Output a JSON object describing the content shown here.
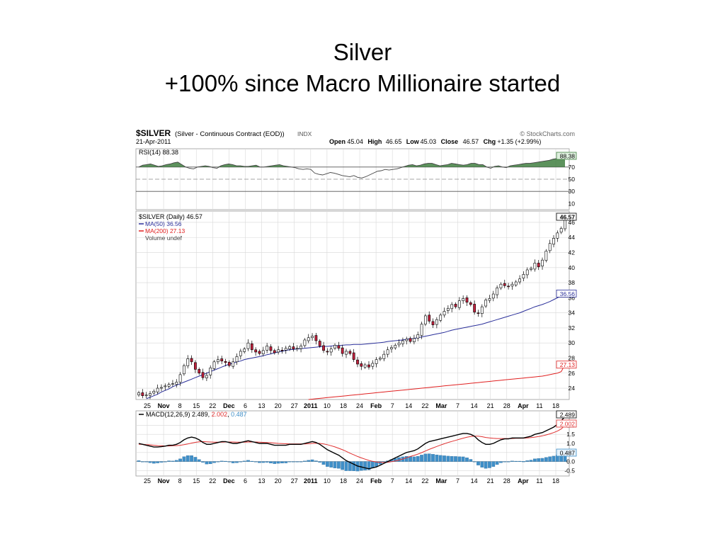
{
  "slide": {
    "title_line1": "Silver",
    "title_line2": "+100% since Macro Millionaire started"
  },
  "colors": {
    "up_candle": "#ffffff",
    "down_candle": "#c0203c",
    "rsi_fill": "#3f7f3f",
    "ma50": "#2a2f9a",
    "ma200": "#e02020",
    "macd_signal": "#e03030",
    "histogram": "#3f8fc8",
    "grid": "#d8d8d8"
  },
  "chart_data": {
    "type": "candlestick",
    "header": {
      "symbol": "$SILVER",
      "description": "(Silver - Continuous Contract (EOD))",
      "exchange": "INDX",
      "date": "21-Apr-2011",
      "brand": "© StockCharts.com",
      "ohlc_text": [
        {
          "label": "Open",
          "value": "45.04"
        },
        {
          "label": "High",
          "value": "46.65"
        },
        {
          "label": "Low",
          "value": "45.03"
        },
        {
          "label": "Close",
          "value": "46.57"
        },
        {
          "label": "Chg",
          "value": "+1.35 (+2.99%)"
        }
      ]
    },
    "x_ticks": [
      "25",
      "Nov",
      "8",
      "15",
      "22",
      "Dec",
      "6",
      "13",
      "20",
      "27",
      "2011",
      "10",
      "18",
      "24",
      "Feb",
      "7",
      "14",
      "22",
      "Mar",
      "7",
      "14",
      "21",
      "28",
      "Apr",
      "11",
      "18"
    ],
    "x_ticks_bold": [
      "Nov",
      "Dec",
      "2011",
      "Feb",
      "Mar",
      "Apr"
    ],
    "rsi": {
      "legend": "RSI(14) 88.38",
      "last_label": "88.38",
      "ylim": [
        0,
        100
      ],
      "y_ticks": [
        10,
        30,
        50,
        70
      ],
      "levels": [
        30,
        50,
        70
      ],
      "values": [
        70,
        73,
        74,
        75,
        73,
        71,
        72,
        74,
        75,
        77,
        78,
        74,
        70,
        68,
        67,
        70,
        71,
        72,
        71,
        69,
        68,
        72,
        74,
        75,
        74,
        72,
        72,
        71,
        71,
        72,
        73,
        70,
        70,
        71,
        72,
        73,
        74,
        72,
        71,
        70,
        69,
        67,
        66,
        67,
        66,
        60,
        58,
        57,
        59,
        61,
        60,
        58,
        56,
        55,
        54,
        56,
        53,
        52,
        54,
        57,
        60,
        63,
        64,
        66,
        65,
        66,
        67,
        69,
        71,
        73,
        74,
        72,
        73,
        75,
        76,
        76,
        74,
        72,
        73,
        74,
        76,
        75,
        74,
        73,
        74,
        76,
        76,
        74,
        74,
        70,
        68,
        71,
        72,
        70,
        69,
        72,
        73,
        74,
        75,
        76,
        76,
        77,
        78,
        79,
        80,
        81,
        83,
        84,
        86,
        88.38
      ]
    },
    "price": {
      "legend": [
        "$SILVER (Daily) 46.57",
        "MA(50) 36.56",
        "MA(200) 27.13",
        "Volume undef"
      ],
      "last_close_label": "46.57",
      "ma50_label": "36.56",
      "ma200_label": "27.13",
      "ylim": [
        22.5,
        47.5
      ],
      "y_ticks": [
        24,
        26,
        28,
        30,
        32,
        34,
        36,
        38,
        40,
        42,
        44,
        46
      ],
      "closes": [
        23.4,
        23.0,
        23.1,
        23.3,
        23.6,
        24.0,
        24.1,
        24.3,
        24.5,
        24.6,
        24.8,
        25.8,
        27.0,
        27.9,
        27.5,
        26.5,
        26.0,
        25.4,
        25.7,
        26.7,
        27.5,
        27.8,
        27.6,
        27.4,
        27.0,
        27.5,
        28.2,
        28.9,
        29.2,
        30.0,
        29.1,
        28.8,
        28.6,
        29.0,
        29.6,
        29.0,
        28.7,
        29.1,
        29.0,
        29.3,
        29.5,
        29.2,
        29.3,
        29.6,
        30.4,
        30.7,
        30.9,
        30.3,
        29.6,
        29.0,
        28.8,
        29.2,
        29.7,
        29.3,
        28.6,
        28.9,
        28.6,
        27.8,
        27.2,
        26.9,
        27.1,
        26.8,
        27.3,
        27.8,
        28.0,
        28.5,
        29.1,
        29.4,
        29.7,
        30.0,
        30.3,
        30.5,
        30.2,
        30.6,
        31.1,
        32.5,
        33.6,
        32.9,
        32.4,
        33.1,
        33.7,
        34.2,
        34.6,
        35.1,
        34.8,
        35.6,
        35.9,
        35.4,
        35.1,
        34.1,
        33.9,
        34.8,
        35.7,
        35.9,
        36.5,
        37.3,
        37.8,
        37.6,
        37.5,
        37.8,
        38.1,
        38.5,
        39.1,
        39.7,
        39.9,
        40.6,
        40.1,
        41.0,
        42.2,
        43.2,
        43.9,
        44.6,
        45.2,
        46.57
      ],
      "ma50": [
        22.2,
        22.4,
        22.6,
        22.8,
        23.0,
        23.2,
        23.5,
        23.7,
        23.9,
        24.2,
        24.4,
        24.6,
        24.8,
        25.0,
        25.2,
        25.4,
        25.6,
        25.8,
        26.0,
        26.2,
        26.4,
        26.6,
        26.8,
        27.0,
        27.2,
        27.3,
        27.5,
        27.6,
        27.8,
        27.9,
        28.0,
        28.1,
        28.2,
        28.3,
        28.45,
        28.55,
        28.7,
        28.8,
        28.9,
        29.0,
        29.1,
        29.15,
        29.2,
        29.25,
        29.3,
        29.35,
        29.4,
        29.45,
        29.5,
        29.55,
        29.55,
        29.6,
        29.65,
        29.65,
        29.7,
        29.75,
        29.75,
        29.8,
        29.8,
        29.8,
        29.85,
        29.9,
        29.95,
        30.0,
        30.05,
        30.1,
        30.2,
        30.25,
        30.3,
        30.35,
        30.4,
        30.5,
        30.55,
        30.6,
        30.7,
        30.8,
        30.9,
        31.0,
        31.1,
        31.2,
        31.3,
        31.4,
        31.55,
        31.7,
        31.8,
        31.9,
        32.0,
        32.1,
        32.2,
        32.3,
        32.4,
        32.5,
        32.65,
        32.8,
        32.95,
        33.1,
        33.25,
        33.4,
        33.55,
        33.7,
        33.85,
        34.0,
        34.2,
        34.4,
        34.6,
        34.8,
        34.95,
        35.1,
        35.3,
        35.5,
        35.75,
        36.0,
        36.3,
        36.56
      ],
      "ma200": [
        20.2,
        20.3,
        20.35,
        20.4,
        20.45,
        20.5,
        20.55,
        20.6,
        20.65,
        20.7,
        20.75,
        20.8,
        20.85,
        20.9,
        20.95,
        21.0,
        21.05,
        21.1,
        21.15,
        21.2,
        21.25,
        21.3,
        21.35,
        21.4,
        21.45,
        21.5,
        21.55,
        21.6,
        21.65,
        21.7,
        21.75,
        21.8,
        21.85,
        21.9,
        21.95,
        22.0,
        22.05,
        22.1,
        22.15,
        22.2,
        22.25,
        22.3,
        22.35,
        22.4,
        22.45,
        22.5,
        22.55,
        22.6,
        22.65,
        22.7,
        22.75,
        22.8,
        22.85,
        22.9,
        22.95,
        23.0,
        23.05,
        23.1,
        23.15,
        23.2,
        23.25,
        23.3,
        23.35,
        23.4,
        23.45,
        23.5,
        23.55,
        23.6,
        23.65,
        23.7,
        23.75,
        23.8,
        23.85,
        23.9,
        23.95,
        24.0,
        24.05,
        24.1,
        24.15,
        24.2,
        24.25,
        24.3,
        24.35,
        24.4,
        24.45,
        24.5,
        24.55,
        24.6,
        24.65,
        24.7,
        24.75,
        24.8,
        24.85,
        24.9,
        24.95,
        25.0,
        25.05,
        25.1,
        25.15,
        25.2,
        25.25,
        25.3,
        25.35,
        25.4,
        25.45,
        25.5,
        25.55,
        25.6,
        25.7,
        25.8,
        25.9,
        26.0,
        26.2,
        27.13
      ]
    },
    "macd": {
      "legend": {
        "name": "MACD(12,26,9)",
        "macd": "2.489",
        "signal": "2.002",
        "hist": "0.487"
      },
      "labels": {
        "macd": "2.489",
        "signal": "2.002",
        "hist": "0.487"
      },
      "ylim": [
        -0.8,
        2.8
      ],
      "y_ticks": [
        2.0,
        1.5,
        1.0,
        0.5,
        0.0,
        -0.5
      ],
      "macd": [
        1.0,
        0.95,
        0.9,
        0.85,
        0.8,
        0.8,
        0.82,
        0.85,
        0.9,
        0.9,
        0.95,
        1.05,
        1.2,
        1.3,
        1.35,
        1.3,
        1.2,
        1.05,
        0.95,
        0.95,
        1.0,
        1.05,
        1.1,
        1.1,
        1.05,
        1.0,
        1.0,
        1.05,
        1.1,
        1.15,
        1.1,
        1.05,
        1.0,
        1.0,
        1.0,
        0.95,
        0.9,
        0.9,
        0.9,
        0.9,
        0.95,
        0.95,
        0.95,
        0.95,
        1.0,
        1.05,
        1.1,
        1.05,
        0.95,
        0.8,
        0.65,
        0.55,
        0.45,
        0.35,
        0.2,
        0.05,
        -0.05,
        -0.15,
        -0.25,
        -0.3,
        -0.35,
        -0.4,
        -0.35,
        -0.3,
        -0.2,
        -0.1,
        0.0,
        0.1,
        0.2,
        0.3,
        0.4,
        0.5,
        0.55,
        0.6,
        0.7,
        0.85,
        1.0,
        1.1,
        1.15,
        1.2,
        1.25,
        1.3,
        1.35,
        1.4,
        1.45,
        1.5,
        1.55,
        1.55,
        1.5,
        1.4,
        1.2,
        1.05,
        0.95,
        0.95,
        1.0,
        1.1,
        1.2,
        1.25,
        1.25,
        1.3,
        1.3,
        1.3,
        1.3,
        1.35,
        1.4,
        1.5,
        1.55,
        1.6,
        1.7,
        1.8,
        1.9,
        2.05,
        2.25,
        2.489
      ],
      "signal": [
        0.95,
        0.95,
        0.93,
        0.92,
        0.9,
        0.88,
        0.87,
        0.86,
        0.86,
        0.87,
        0.88,
        0.9,
        0.93,
        0.97,
        1.02,
        1.06,
        1.09,
        1.1,
        1.09,
        1.08,
        1.07,
        1.07,
        1.07,
        1.08,
        1.08,
        1.08,
        1.07,
        1.07,
        1.07,
        1.08,
        1.08,
        1.08,
        1.07,
        1.06,
        1.05,
        1.04,
        1.02,
        1.0,
        0.99,
        0.98,
        0.97,
        0.97,
        0.97,
        0.97,
        0.97,
        0.98,
        1.0,
        1.01,
        1.0,
        0.97,
        0.93,
        0.87,
        0.81,
        0.73,
        0.65,
        0.56,
        0.46,
        0.37,
        0.28,
        0.2,
        0.13,
        0.06,
        0.01,
        -0.03,
        -0.05,
        -0.05,
        -0.04,
        -0.01,
        0.03,
        0.08,
        0.14,
        0.21,
        0.28,
        0.34,
        0.41,
        0.49,
        0.58,
        0.67,
        0.75,
        0.83,
        0.91,
        0.98,
        1.05,
        1.11,
        1.17,
        1.23,
        1.29,
        1.34,
        1.38,
        1.4,
        1.4,
        1.37,
        1.33,
        1.3,
        1.28,
        1.27,
        1.27,
        1.27,
        1.27,
        1.27,
        1.28,
        1.28,
        1.29,
        1.3,
        1.32,
        1.35,
        1.38,
        1.42,
        1.47,
        1.53,
        1.6,
        1.68,
        1.8,
        2.002
      ]
    }
  }
}
